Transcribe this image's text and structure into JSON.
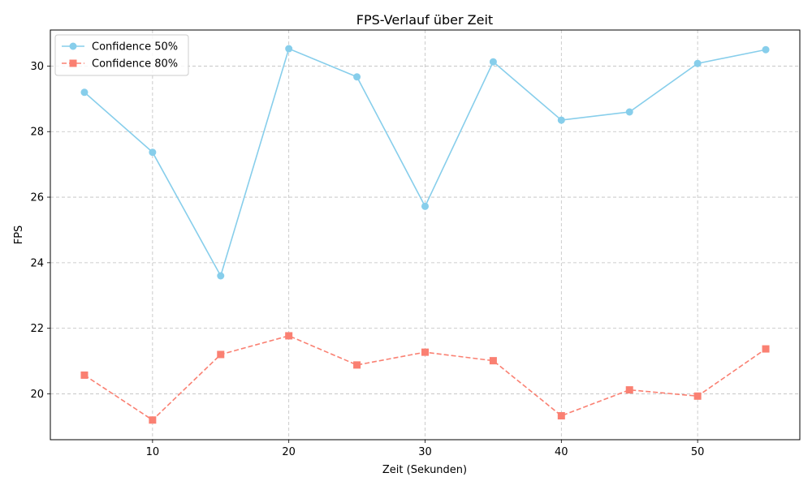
{
  "chart_data": {
    "type": "line",
    "title": "FPS-Verlauf über Zeit",
    "xlabel": "Zeit (Sekunden)",
    "ylabel": "FPS",
    "x": [
      5,
      10,
      15,
      20,
      25,
      30,
      35,
      40,
      45,
      50,
      55
    ],
    "xlim": [
      2.5,
      57.5
    ],
    "ylim": [
      18.6,
      31.1
    ],
    "xticks": [
      10,
      20,
      30,
      40,
      50
    ],
    "yticks": [
      20,
      22,
      24,
      26,
      28,
      30
    ],
    "grid": true,
    "legend_position": "top-left",
    "series": [
      {
        "name": "Confidence 50%",
        "values": [
          29.2,
          27.37,
          23.6,
          30.53,
          29.67,
          25.72,
          30.13,
          28.35,
          28.6,
          30.08,
          30.5
        ],
        "color": "#87ceeb",
        "marker": "circle",
        "linestyle": "solid"
      },
      {
        "name": "Confidence 80%",
        "values": [
          20.57,
          19.2,
          21.2,
          21.77,
          20.88,
          21.27,
          21.01,
          19.33,
          20.12,
          19.93,
          21.37
        ],
        "color": "#fa8072",
        "marker": "square",
        "linestyle": "dashed"
      }
    ]
  }
}
